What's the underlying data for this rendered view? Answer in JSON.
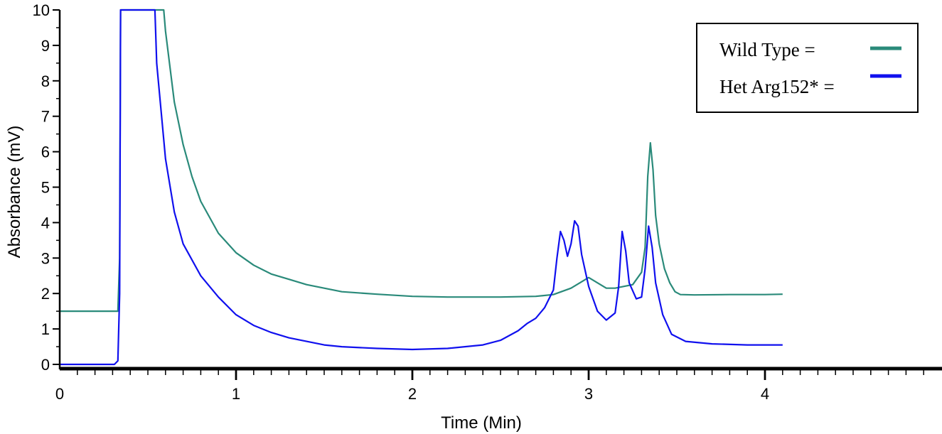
{
  "chart_data": {
    "type": "line",
    "xlabel": "Time (Min)",
    "ylabel": "Absorbance (mV)",
    "xlim": [
      0,
      5
    ],
    "ylim": [
      0,
      10
    ],
    "x_ticks": [
      "0",
      "1",
      "2",
      "3",
      "4"
    ],
    "y_ticks": [
      "0",
      "1",
      "2",
      "3",
      "4",
      "5",
      "6",
      "7",
      "8",
      "9",
      "10"
    ],
    "grid": false,
    "legend_position": "top-right",
    "series": [
      {
        "name": "Wild Type",
        "legend_label": "Wild Type  =",
        "color": "#2a8a7a",
        "points": [
          [
            0.0,
            1.5
          ],
          [
            0.33,
            1.5
          ],
          [
            0.34,
            3.0
          ],
          [
            0.345,
            10.0
          ],
          [
            0.59,
            10.0
          ],
          [
            0.6,
            9.4
          ],
          [
            0.65,
            7.4
          ],
          [
            0.7,
            6.2
          ],
          [
            0.75,
            5.3
          ],
          [
            0.8,
            4.6
          ],
          [
            0.9,
            3.7
          ],
          [
            1.0,
            3.15
          ],
          [
            1.1,
            2.8
          ],
          [
            1.2,
            2.55
          ],
          [
            1.3,
            2.4
          ],
          [
            1.4,
            2.25
          ],
          [
            1.5,
            2.15
          ],
          [
            1.6,
            2.05
          ],
          [
            1.8,
            1.98
          ],
          [
            2.0,
            1.92
          ],
          [
            2.2,
            1.9
          ],
          [
            2.5,
            1.9
          ],
          [
            2.7,
            1.92
          ],
          [
            2.8,
            1.97
          ],
          [
            2.9,
            2.15
          ],
          [
            2.95,
            2.3
          ],
          [
            3.0,
            2.45
          ],
          [
            3.05,
            2.3
          ],
          [
            3.1,
            2.15
          ],
          [
            3.15,
            2.15
          ],
          [
            3.2,
            2.2
          ],
          [
            3.25,
            2.25
          ],
          [
            3.3,
            2.6
          ],
          [
            3.32,
            3.3
          ],
          [
            3.335,
            5.3
          ],
          [
            3.35,
            6.25
          ],
          [
            3.365,
            5.5
          ],
          [
            3.38,
            4.2
          ],
          [
            3.4,
            3.4
          ],
          [
            3.43,
            2.7
          ],
          [
            3.46,
            2.3
          ],
          [
            3.49,
            2.05
          ],
          [
            3.52,
            1.97
          ],
          [
            3.6,
            1.96
          ],
          [
            3.8,
            1.97
          ],
          [
            4.0,
            1.97
          ],
          [
            4.1,
            1.98
          ]
        ]
      },
      {
        "name": "Het Arg152*",
        "legend_label": "Het Arg152* =",
        "color": "#1010ee",
        "points": [
          [
            0.0,
            0.0
          ],
          [
            0.31,
            0.0
          ],
          [
            0.33,
            0.1
          ],
          [
            0.34,
            2.0
          ],
          [
            0.345,
            10.0
          ],
          [
            0.54,
            10.0
          ],
          [
            0.55,
            8.5
          ],
          [
            0.6,
            5.8
          ],
          [
            0.65,
            4.3
          ],
          [
            0.7,
            3.4
          ],
          [
            0.8,
            2.5
          ],
          [
            0.9,
            1.9
          ],
          [
            1.0,
            1.4
          ],
          [
            1.1,
            1.1
          ],
          [
            1.2,
            0.9
          ],
          [
            1.3,
            0.75
          ],
          [
            1.4,
            0.65
          ],
          [
            1.5,
            0.55
          ],
          [
            1.6,
            0.5
          ],
          [
            1.8,
            0.45
          ],
          [
            2.0,
            0.42
          ],
          [
            2.2,
            0.45
          ],
          [
            2.4,
            0.55
          ],
          [
            2.5,
            0.68
          ],
          [
            2.6,
            0.95
          ],
          [
            2.65,
            1.15
          ],
          [
            2.7,
            1.3
          ],
          [
            2.75,
            1.6
          ],
          [
            2.8,
            2.1
          ],
          [
            2.82,
            3.0
          ],
          [
            2.84,
            3.75
          ],
          [
            2.86,
            3.5
          ],
          [
            2.88,
            3.05
          ],
          [
            2.9,
            3.4
          ],
          [
            2.92,
            4.05
          ],
          [
            2.94,
            3.9
          ],
          [
            2.96,
            3.1
          ],
          [
            3.0,
            2.2
          ],
          [
            3.05,
            1.5
          ],
          [
            3.1,
            1.25
          ],
          [
            3.15,
            1.45
          ],
          [
            3.17,
            2.2
          ],
          [
            3.19,
            3.75
          ],
          [
            3.21,
            3.2
          ],
          [
            3.23,
            2.3
          ],
          [
            3.27,
            1.85
          ],
          [
            3.3,
            1.9
          ],
          [
            3.32,
            2.7
          ],
          [
            3.34,
            3.9
          ],
          [
            3.36,
            3.3
          ],
          [
            3.38,
            2.3
          ],
          [
            3.42,
            1.4
          ],
          [
            3.47,
            0.85
          ],
          [
            3.55,
            0.65
          ],
          [
            3.7,
            0.58
          ],
          [
            3.9,
            0.55
          ],
          [
            4.1,
            0.55
          ]
        ]
      }
    ]
  }
}
